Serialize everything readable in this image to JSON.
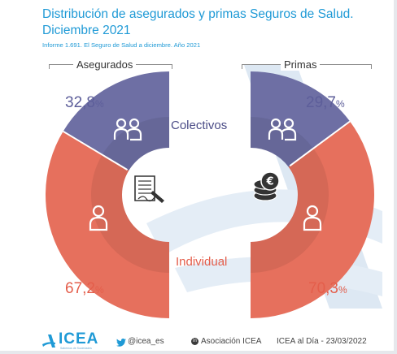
{
  "title": "Distribución de asegurados y primas Seguros de Salud. Diciembre 2021",
  "subtitle": "Informe 1.691. El Seguro de Salud a diciembre. Año 2021",
  "chart_data": [
    {
      "type": "pie",
      "title": "Asegurados",
      "categories": [
        "Colectivos",
        "Individual"
      ],
      "values": [
        32.8,
        67.2
      ],
      "value_labels": [
        {
          "num": "32,8",
          "unit": "%"
        },
        {
          "num": "67,2",
          "unit": "%"
        }
      ],
      "colors": [
        "#6e6fa4",
        "#e6705d"
      ],
      "center_icon": "document-signature-icon"
    },
    {
      "type": "pie",
      "title": "Primas",
      "categories": [
        "Colectivos",
        "Individual"
      ],
      "values": [
        29.7,
        70.3
      ],
      "value_labels": [
        {
          "num": "29,7",
          "unit": "%"
        },
        {
          "num": "70,3",
          "unit": "%"
        }
      ],
      "colors": [
        "#6e6fa4",
        "#e6705d"
      ],
      "center_icon": "coins-icon"
    }
  ],
  "categories_labels": {
    "colectivos": "Colectivos",
    "individual": "Individual"
  },
  "icons": {
    "colectivos": "group-people-icon",
    "individual": "person-icon"
  },
  "colors": {
    "brand": "#1f9ad6",
    "colectivos": "#6e6fa4",
    "individual": "#e6705d",
    "watermark": "#dbe7f2"
  },
  "footer": {
    "logo": "ICEA",
    "logo_tagline": "Sabemos de Sociedades",
    "twitter": "@icea_es",
    "linkedin_badge": "in",
    "linkedin": "Asociación ICEA",
    "date_note": "ICEA al Día - 23/03/2022"
  }
}
